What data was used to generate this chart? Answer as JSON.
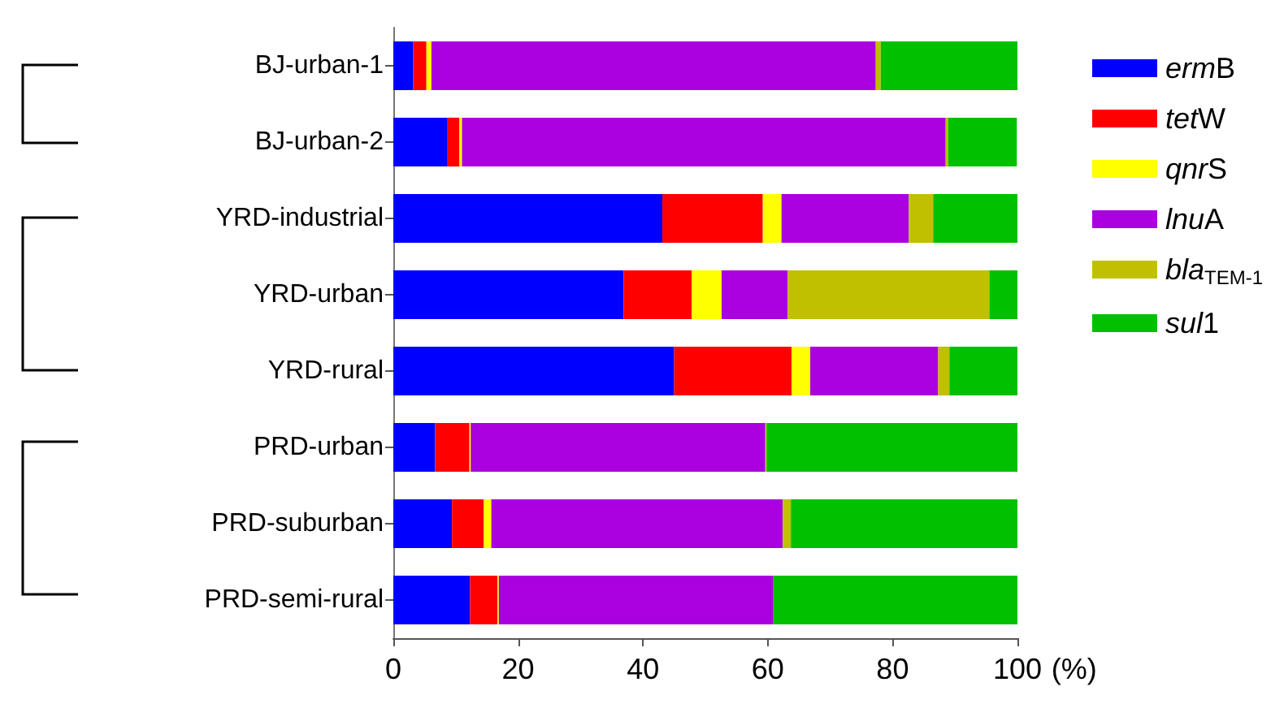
{
  "chart_data": {
    "type": "bar",
    "orientation": "horizontal",
    "stacked": true,
    "xlabel": "(%)",
    "categories": [
      "BJ-urban-1",
      "BJ-urban-2",
      "YRD-industrial",
      "YRD-urban",
      "YRD-rural",
      "PRD-urban",
      "PRD-suburban",
      "PRD-semi-rural"
    ],
    "series": [
      {
        "name": "ermB",
        "color": "#0000ff",
        "values": [
          3.2,
          8.7,
          43.1,
          36.9,
          45.0,
          6.7,
          9.4,
          12.3
        ]
      },
      {
        "name": "tetW",
        "color": "#ff0000",
        "values": [
          2.1,
          1.9,
          16.1,
          10.9,
          18.8,
          5.5,
          5.1,
          4.4
        ]
      },
      {
        "name": "qnrS",
        "color": "#ffff00",
        "values": [
          0.8,
          0.4,
          3.0,
          4.8,
          3.0,
          0.2,
          1.2,
          0.2
        ]
      },
      {
        "name": "lnuA",
        "color": "#aa00e0",
        "values": [
          71.2,
          77.5,
          20.4,
          10.6,
          20.5,
          47.2,
          46.7,
          44.0
        ]
      },
      {
        "name": "bla$_{TEM-1}$",
        "color": "#c0c000",
        "values": [
          0.8,
          0.4,
          3.9,
          32.3,
          1.8,
          0.2,
          1.3,
          0
        ]
      },
      {
        "name": "sul1",
        "color": "#00c000",
        "values": [
          21.9,
          11.0,
          13.5,
          4.5,
          10.9,
          40.2,
          36.3,
          39.1
        ]
      }
    ],
    "xlim": [
      0,
      100
    ],
    "xticks": [
      0,
      20,
      40,
      60,
      80,
      100
    ],
    "grid": false,
    "legend": "right"
  }
}
